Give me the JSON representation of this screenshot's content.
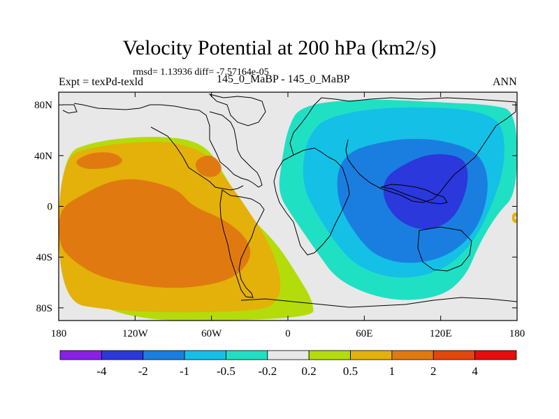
{
  "header": {
    "title": "Velocity Potential at 200 hPa (km2/s)",
    "stats": "rmsd= 1.13936 diff= -7.57164e-05",
    "experiment": "Expt = texPd-texld",
    "case": "145_0_MaBP - 145_0_MaBP",
    "season": "ANN"
  },
  "colors": {
    "background": "#ffffff",
    "map_border": "#000000",
    "land_outline": "#000000"
  },
  "chart_data": {
    "type": "heatmap",
    "title": "Velocity Potential at 200 hPa (km2/s)",
    "projection": "cylindrical equidistant",
    "x_range": [
      -180,
      180
    ],
    "y_range": [
      -90,
      90
    ],
    "x_ticks": [
      {
        "value": -180,
        "label": "180"
      },
      {
        "value": -120,
        "label": "120W"
      },
      {
        "value": -60,
        "label": "60W"
      },
      {
        "value": 0,
        "label": "0"
      },
      {
        "value": 60,
        "label": "60E"
      },
      {
        "value": 120,
        "label": "120E"
      },
      {
        "value": 180,
        "label": "180"
      }
    ],
    "y_ticks": [
      {
        "value": 80,
        "label": "80N"
      },
      {
        "value": 40,
        "label": "40N"
      },
      {
        "value": 0,
        "label": "0"
      },
      {
        "value": -40,
        "label": "40S"
      },
      {
        "value": -80,
        "label": "80S"
      }
    ],
    "colorbar": {
      "colors": [
        "#8a1fe8",
        "#2a38dc",
        "#1a7ee0",
        "#14c0e6",
        "#20e0c4",
        "#e8e8e8",
        "#b4dc0a",
        "#e4b00a",
        "#e07a10",
        "#e4460c",
        "#e80c0c"
      ],
      "labels": [
        "-4",
        "-2",
        "-1",
        "-0.5",
        "-0.2",
        "0.2",
        "0.5",
        "1",
        "2",
        "4"
      ]
    },
    "fields": [
      {
        "level": 6,
        "color": "#b4dc0a",
        "polygon": [
          [
            -180,
            40
          ],
          [
            -150,
            52
          ],
          [
            -100,
            56
          ],
          [
            -65,
            50
          ],
          [
            -50,
            25
          ],
          [
            -40,
            8
          ],
          [
            -28,
            -10
          ],
          [
            -8,
            -30
          ],
          [
            8,
            -55
          ],
          [
            20,
            -75
          ],
          [
            20,
            -90
          ],
          [
            -180,
            -90
          ]
        ]
      },
      {
        "level": 7,
        "color": "#e4b00a",
        "polygon": [
          [
            -180,
            38
          ],
          [
            -150,
            48
          ],
          [
            -100,
            52
          ],
          [
            -80,
            48
          ],
          [
            -65,
            42
          ],
          [
            -55,
            30
          ],
          [
            -40,
            10
          ],
          [
            -30,
            -5
          ],
          [
            -20,
            -20
          ],
          [
            -10,
            -40
          ],
          [
            -5,
            -60
          ],
          [
            -8,
            -75
          ],
          [
            -20,
            -82
          ],
          [
            -80,
            -84
          ],
          [
            -140,
            -82
          ],
          [
            -180,
            -75
          ]
        ]
      },
      {
        "level": 8,
        "color": "#e07a10",
        "polygon": [
          [
            -180,
            -2
          ],
          [
            -160,
            10
          ],
          [
            -140,
            20
          ],
          [
            -120,
            22
          ],
          [
            -100,
            18
          ],
          [
            -85,
            12
          ],
          [
            -75,
            0
          ],
          [
            -50,
            -10
          ],
          [
            -32,
            -25
          ],
          [
            -28,
            -40
          ],
          [
            -40,
            -55
          ],
          [
            -60,
            -62
          ],
          [
            -90,
            -65
          ],
          [
            -120,
            -62
          ],
          [
            -150,
            -55
          ],
          [
            -170,
            -42
          ],
          [
            -180,
            -30
          ]
        ]
      },
      {
        "level": 8,
        "color": "#e07a10",
        "polygon": [
          [
            -168,
            35
          ],
          [
            -160,
            40
          ],
          [
            -150,
            43
          ],
          [
            -135,
            42
          ],
          [
            -128,
            35
          ],
          [
            -140,
            30
          ],
          [
            -160,
            29
          ]
        ]
      },
      {
        "level": 8,
        "color": "#e07a10",
        "polygon": [
          [
            -74,
            36
          ],
          [
            -60,
            42
          ],
          [
            -50,
            30
          ],
          [
            -58,
            22
          ],
          [
            -70,
            25
          ]
        ]
      },
      {
        "level": 7,
        "color": "#e4b00a",
        "polygon": [
          [
            176,
            -6
          ],
          [
            180,
            -4
          ],
          [
            180,
            -14
          ],
          [
            176,
            -12
          ]
        ]
      },
      {
        "level": 5,
        "color": "#e8e8e8",
        "polygon": [
          [
            178,
            -8
          ],
          [
            180,
            -8
          ],
          [
            180,
            -10
          ],
          [
            178,
            -10
          ]
        ]
      },
      {
        "level": 4,
        "color": "#20e0c4",
        "polygon": [
          [
            10,
            80
          ],
          [
            60,
            85
          ],
          [
            120,
            82
          ],
          [
            160,
            80
          ],
          [
            180,
            75
          ],
          [
            180,
            10
          ],
          [
            165,
            -5
          ],
          [
            150,
            -30
          ],
          [
            140,
            -55
          ],
          [
            120,
            -72
          ],
          [
            80,
            -75
          ],
          [
            40,
            -60
          ],
          [
            22,
            -35
          ],
          [
            5,
            -10
          ],
          [
            -8,
            10
          ],
          [
            -5,
            35
          ],
          [
            0,
            62
          ]
        ]
      },
      {
        "level": 3,
        "color": "#14c0e6",
        "polygon": [
          [
            30,
            70
          ],
          [
            70,
            78
          ],
          [
            130,
            78
          ],
          [
            160,
            72
          ],
          [
            170,
            60
          ],
          [
            170,
            30
          ],
          [
            160,
            0
          ],
          [
            145,
            -30
          ],
          [
            120,
            -52
          ],
          [
            85,
            -58
          ],
          [
            55,
            -48
          ],
          [
            38,
            -30
          ],
          [
            22,
            -5
          ],
          [
            12,
            15
          ],
          [
            12,
            40
          ],
          [
            18,
            58
          ]
        ]
      },
      {
        "level": 2,
        "color": "#1a7ee0",
        "polygon": [
          [
            60,
            48
          ],
          [
            100,
            55
          ],
          [
            140,
            48
          ],
          [
            155,
            35
          ],
          [
            158,
            10
          ],
          [
            148,
            -20
          ],
          [
            125,
            -40
          ],
          [
            95,
            -46
          ],
          [
            70,
            -40
          ],
          [
            55,
            -25
          ],
          [
            40,
            0
          ],
          [
            38,
            25
          ],
          [
            45,
            40
          ]
        ]
      },
      {
        "level": 1,
        "color": "#2a38dc",
        "polygon": [
          [
            85,
            30
          ],
          [
            110,
            42
          ],
          [
            135,
            40
          ],
          [
            142,
            30
          ],
          [
            140,
            10
          ],
          [
            130,
            -10
          ],
          [
            115,
            -18
          ],
          [
            100,
            -18
          ],
          [
            85,
            -10
          ],
          [
            75,
            5
          ],
          [
            75,
            20
          ]
        ]
      }
    ]
  }
}
